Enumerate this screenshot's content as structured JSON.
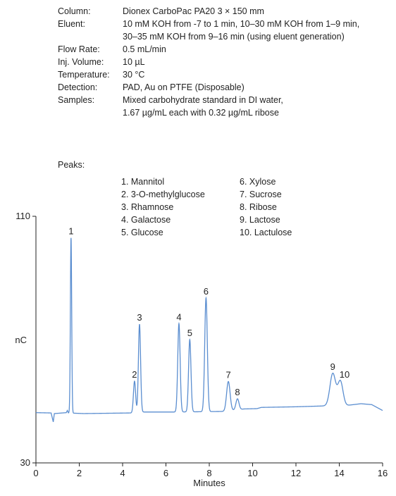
{
  "conditions": [
    {
      "label": "Column:",
      "lines": [
        "Dionex CarboPac  PA20 3 × 150 mm"
      ]
    },
    {
      "label": "Eluent:",
      "lines": [
        "10 mM KOH from -7 to 1 min, 10–30 mM KOH from 1–9 min,",
        "30–35 mM KOH from 9–16 min (using eluent generation)"
      ]
    },
    {
      "label": "Flow Rate:",
      "lines": [
        "0.5 mL/min"
      ]
    },
    {
      "label": "Inj. Volume:",
      "lines": [
        "10 µL"
      ]
    },
    {
      "label": "Temperature:",
      "lines": [
        "30 °C"
      ]
    },
    {
      "label": "Detection:",
      "lines": [
        "PAD, Au on PTFE (Disposable)"
      ]
    },
    {
      "label": "Samples:",
      "lines": [
        "Mixed carbohydrate standard in DI water,",
        "1.67 µg/mL each with 0.32 µg/mL ribose"
      ]
    }
  ],
  "peaks_label": "Peaks:",
  "peak_names": [
    "1. Mannitol",
    "2. 3-O-methylglucose",
    "3. Rhamnose",
    "4. Galactose",
    "5. Glucose",
    "6. Xylose",
    "7. Sucrose",
    "8. Ribose",
    "9. Lactose",
    "10. Lactulose"
  ],
  "chart_data": {
    "type": "line",
    "title": "",
    "xlabel": "Minutes",
    "ylabel": "nC",
    "xlim": [
      0,
      16
    ],
    "ylim": [
      30,
      110
    ],
    "xticks": [
      0,
      2,
      4,
      6,
      8,
      10,
      12,
      14,
      16
    ],
    "yticks": [
      30,
      110
    ],
    "grid": false,
    "line_color": "#5b8ed0",
    "baseline": [
      [
        0,
        46.3
      ],
      [
        0.7,
        46.2
      ],
      [
        0.8,
        43.3
      ],
      [
        0.85,
        46.0
      ],
      [
        1.4,
        46.3
      ],
      [
        1.45,
        47.0
      ],
      [
        1.5,
        46.2
      ],
      [
        2.2,
        46.0
      ],
      [
        4.4,
        46.2
      ],
      [
        4.9,
        46.5
      ],
      [
        6.5,
        46.5
      ],
      [
        8.7,
        46.7
      ],
      [
        9.6,
        47.5
      ],
      [
        10.2,
        47.6
      ],
      [
        10.4,
        48.0
      ],
      [
        12,
        48.2
      ],
      [
        13.4,
        48.5
      ],
      [
        14.3,
        48.6
      ],
      [
        15,
        49.2
      ],
      [
        15.5,
        48.9
      ],
      [
        16,
        47.0
      ]
    ],
    "peaks": [
      {
        "label": "1",
        "x": 1.62,
        "y": 103.0,
        "width": 0.03
      },
      {
        "label": "2",
        "x": 4.55,
        "y": 56.5,
        "width": 0.05
      },
      {
        "label": "3",
        "x": 4.78,
        "y": 75.0,
        "width": 0.05
      },
      {
        "label": "4",
        "x": 6.6,
        "y": 75.2,
        "width": 0.055
      },
      {
        "label": "5",
        "x": 7.1,
        "y": 70.0,
        "width": 0.055
      },
      {
        "label": "6",
        "x": 7.85,
        "y": 83.5,
        "width": 0.06
      },
      {
        "label": "7",
        "x": 8.88,
        "y": 56.4,
        "width": 0.08
      },
      {
        "label": "8",
        "x": 9.3,
        "y": 50.8,
        "width": 0.07
      },
      {
        "label": "9",
        "x": 13.7,
        "y": 59.0,
        "width": 0.13
      },
      {
        "label": "10",
        "x": 14.05,
        "y": 56.5,
        "width": 0.12
      }
    ]
  }
}
